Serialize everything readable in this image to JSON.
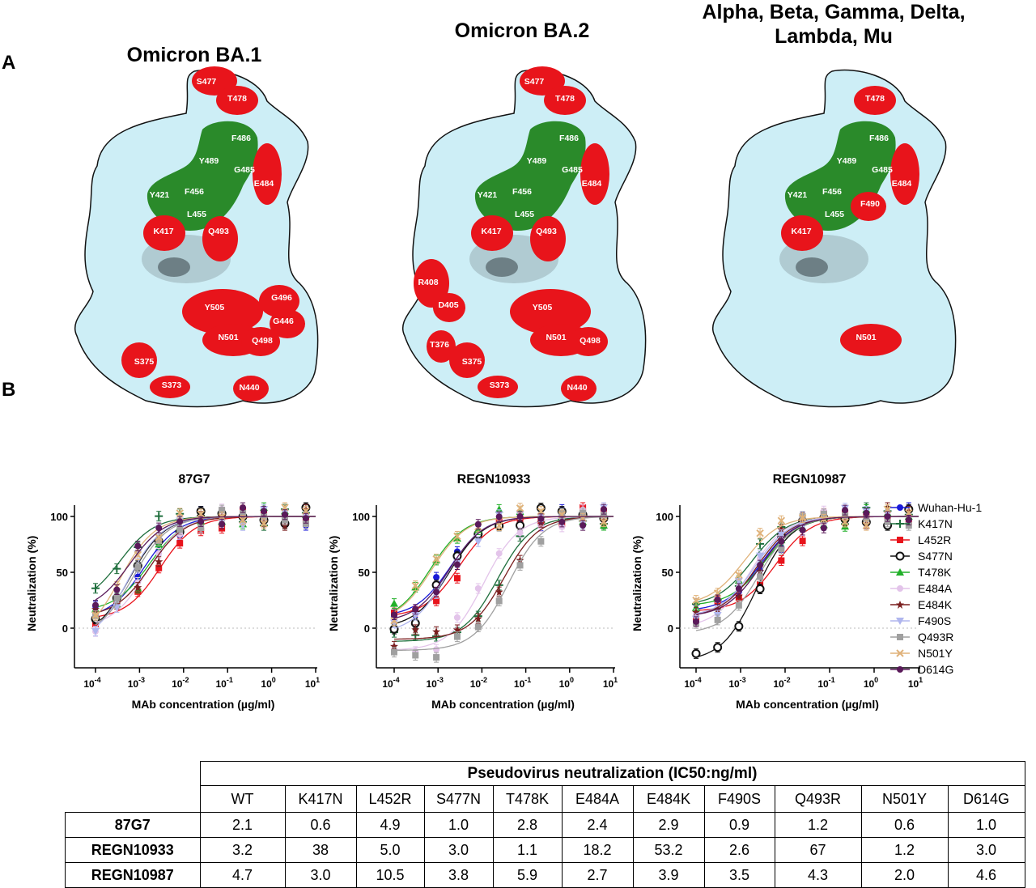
{
  "panel_labels": {
    "a": "A",
    "b": "B"
  },
  "structures": [
    {
      "title": "Omicron BA.1",
      "residues": [
        "S477",
        "T478",
        "F486",
        "Y489",
        "G485",
        "E484",
        "Y421",
        "F456",
        "L455",
        "K417",
        "Q493",
        "Y505",
        "G496",
        "G446",
        "N501",
        "Q498",
        "S375",
        "S373",
        "N440"
      ]
    },
    {
      "title": "Omicron BA.2",
      "residues": [
        "S477",
        "T478",
        "F486",
        "Y489",
        "G485",
        "E484",
        "Y421",
        "F456",
        "L455",
        "K417",
        "Q493",
        "R408",
        "D405",
        "Y505",
        "N501",
        "Q498",
        "T376",
        "S375",
        "S373",
        "N440"
      ]
    },
    {
      "title": "Alpha, Beta, Gamma, Delta, Lambda, Mu",
      "residues": [
        "T478",
        "F486",
        "Y489",
        "G485",
        "E484",
        "Y421",
        "F456",
        "F490",
        "L455",
        "K417",
        "N501"
      ]
    }
  ],
  "colors": {
    "surface": "#cdeef6",
    "mutated": "#e8141b",
    "epitope": "#2a8a2a"
  },
  "chart_data": [
    {
      "type": "line",
      "title": "87G7",
      "xlabel": "MAb concentration (µg/ml)",
      "ylabel": "Neutralization (%)",
      "xscale": "log",
      "xlim": [
        5e-05,
        10
      ],
      "ylim": [
        -35,
        110
      ],
      "yticks": [
        0,
        50,
        100
      ],
      "xticks": [
        {
          "base": "10",
          "exp": "-4"
        },
        {
          "base": "10",
          "exp": "-3"
        },
        {
          "base": "10",
          "exp": "-2"
        },
        {
          "base": "10",
          "exp": "-1"
        },
        {
          "base": "10",
          "exp": "0"
        },
        {
          "base": "10",
          "exp": "1"
        }
      ],
      "ic50_ng_ml": [
        2.1,
        0.6,
        4.9,
        1.0,
        2.8,
        2.4,
        2.9,
        0.9,
        1.2,
        0.6,
        1.0
      ],
      "bottom": [
        8,
        20,
        8,
        -10,
        15,
        0,
        10,
        -15,
        -8,
        -12,
        15
      ],
      "grid": false
    },
    {
      "type": "line",
      "title": "REGN10933",
      "xlabel": "MAb concentration (µg/ml)",
      "ylabel": "Neutralization (%)",
      "xscale": "log",
      "xlim": [
        5e-05,
        10
      ],
      "ylim": [
        -35,
        110
      ],
      "yticks": [
        0,
        50,
        100
      ],
      "xticks": [
        {
          "base": "10",
          "exp": "-4"
        },
        {
          "base": "10",
          "exp": "-3"
        },
        {
          "base": "10",
          "exp": "-2"
        },
        {
          "base": "10",
          "exp": "-1"
        },
        {
          "base": "10",
          "exp": "0"
        },
        {
          "base": "10",
          "exp": "1"
        }
      ],
      "ic50_ng_ml": [
        3.2,
        38,
        5.0,
        3.0,
        1.1,
        18.2,
        53.2,
        2.6,
        67,
        1.2,
        3.0
      ],
      "bottom": [
        10,
        -12,
        10,
        0,
        5,
        -20,
        -10,
        -5,
        -20,
        5,
        5
      ],
      "grid": false
    },
    {
      "type": "line",
      "title": "REGN10987",
      "xlabel": "MAb concentration (µg/ml)",
      "ylabel": "Neutralization (%)",
      "xscale": "log",
      "xlim": [
        5e-05,
        10
      ],
      "ylim": [
        -35,
        110
      ],
      "yticks": [
        0,
        50,
        100
      ],
      "xticks": [
        {
          "base": "10",
          "exp": "-4"
        },
        {
          "base": "10",
          "exp": "-3"
        },
        {
          "base": "10",
          "exp": "-2"
        },
        {
          "base": "10",
          "exp": "-1"
        },
        {
          "base": "10",
          "exp": "0"
        },
        {
          "base": "10",
          "exp": "1"
        }
      ],
      "ic50_ng_ml": [
        4.7,
        3.0,
        10.5,
        3.8,
        5.9,
        2.7,
        3.9,
        3.5,
        4.3,
        2.0,
        4.6
      ],
      "bottom": [
        15,
        20,
        15,
        -30,
        20,
        0,
        10,
        10,
        -5,
        20,
        10
      ],
      "grid": false
    }
  ],
  "concentrations_ug_ml": [
    6,
    2,
    0.667,
    0.222,
    0.0741,
    0.0247,
    0.00823,
    0.00274,
    0.000914,
    0.000305,
    0.0001
  ],
  "legend": [
    {
      "name": "Wuhan-Hu-1",
      "color": "#1a1ad8",
      "marker": "circle"
    },
    {
      "name": "K417N",
      "color": "#1e6e3c",
      "marker": "plus"
    },
    {
      "name": "L452R",
      "color": "#e8131b",
      "marker": "square"
    },
    {
      "name": "S477N",
      "color": "#111111",
      "marker": "circle-cross"
    },
    {
      "name": "T478K",
      "color": "#22b02a",
      "marker": "triangle"
    },
    {
      "name": "E484A",
      "color": "#e3c4ea",
      "marker": "circle"
    },
    {
      "name": "E484K",
      "color": "#7a1f1f",
      "marker": "star"
    },
    {
      "name": "F490S",
      "color": "#b0b6ee",
      "marker": "triangle-down"
    },
    {
      "name": "Q493R",
      "color": "#a0a0a0",
      "marker": "square"
    },
    {
      "name": "N501Y",
      "color": "#e0b27a",
      "marker": "x"
    },
    {
      "name": "D614G",
      "color": "#5a1a5a",
      "marker": "circle"
    }
  ],
  "table": {
    "title": "Pseudovirus neutralization (IC50:ng/ml)",
    "columns": [
      "WT",
      "K417N",
      "L452R",
      "S477N",
      "T478K",
      "E484A",
      "E484K",
      "F490S",
      "Q493R",
      "N501Y",
      "D614G"
    ],
    "rows": [
      {
        "label": "87G7",
        "values": [
          "2.1",
          "0.6",
          "4.9",
          "1.0",
          "2.8",
          "2.4",
          "2.9",
          "0.9",
          "1.2",
          "0.6",
          "1.0"
        ]
      },
      {
        "label": "REGN10933",
        "values": [
          "3.2",
          "38",
          "5.0",
          "3.0",
          "1.1",
          "18.2",
          "53.2",
          "2.6",
          "67",
          "1.2",
          "3.0"
        ]
      },
      {
        "label": "REGN10987",
        "values": [
          "4.7",
          "3.0",
          "10.5",
          "3.8",
          "5.9",
          "2.7",
          "3.9",
          "3.5",
          "4.3",
          "2.0",
          "4.6"
        ]
      }
    ]
  }
}
